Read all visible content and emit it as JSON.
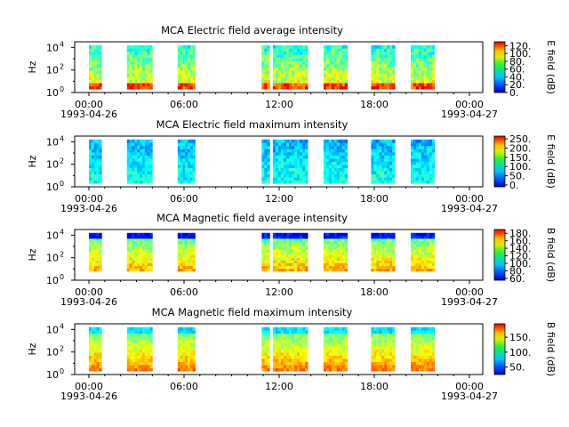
{
  "chart_data": [
    {
      "type": "heatmap",
      "title": "MCA  Electric field average intensity",
      "ylabel": "Hz",
      "y_scale": "log",
      "y_ticks": [
        {
          "base": "10",
          "exp": "0"
        },
        {
          "base": "10",
          "exp": "2"
        },
        {
          "base": "10",
          "exp": "4"
        }
      ],
      "x_ticks": [
        "00:00",
        "06:00",
        "12:00",
        "18:00",
        "00:00"
      ],
      "x_dates": [
        "1993-04-26",
        "1993-04-27"
      ],
      "x_range_hours": [
        0,
        24
      ],
      "y_range_exp": [
        0,
        4.5
      ],
      "colorbar_label": "E field (dB)",
      "colorbar_ticks": [
        "0.",
        "20.",
        "40.",
        "60.",
        "80.",
        "100.",
        "120."
      ],
      "colorbar_range": [
        0,
        130
      ],
      "data_ranges_hours": [
        [
          0.0,
          0.8
        ],
        [
          2.4,
          4.0
        ],
        [
          5.6,
          6.7
        ],
        [
          10.9,
          11.4
        ],
        [
          11.6,
          13.8
        ],
        [
          14.8,
          16.3
        ],
        [
          17.8,
          19.3
        ],
        [
          20.3,
          21.8
        ]
      ],
      "freq_range_exp": [
        0.3,
        4.2
      ]
    },
    {
      "type": "heatmap",
      "title": "MCA  Electric field maximum intensity",
      "ylabel": "Hz",
      "y_scale": "log",
      "y_ticks": [
        {
          "base": "10",
          "exp": "0"
        },
        {
          "base": "10",
          "exp": "2"
        },
        {
          "base": "10",
          "exp": "4"
        }
      ],
      "x_ticks": [
        "00:00",
        "06:00",
        "12:00",
        "18:00",
        "00:00"
      ],
      "x_dates": [
        "1993-04-26",
        "1993-04-27"
      ],
      "x_range_hours": [
        0,
        24
      ],
      "y_range_exp": [
        0,
        4.5
      ],
      "colorbar_label": "E field (dB)",
      "colorbar_ticks": [
        "0.",
        "50.",
        "100.",
        "150.",
        "200.",
        "250."
      ],
      "colorbar_range": [
        -10,
        265
      ],
      "data_ranges_hours": [
        [
          0.0,
          0.8
        ],
        [
          2.4,
          4.0
        ],
        [
          5.6,
          6.7
        ],
        [
          10.9,
          11.4
        ],
        [
          11.6,
          13.8
        ],
        [
          14.8,
          16.3
        ],
        [
          17.8,
          19.3
        ],
        [
          20.3,
          21.8
        ]
      ],
      "freq_range_exp": [
        0.3,
        4.2
      ]
    },
    {
      "type": "heatmap",
      "title": "MCA  Magnetic field average intensity",
      "ylabel": "Hz",
      "y_scale": "log",
      "y_ticks": [
        {
          "base": "10",
          "exp": "0"
        },
        {
          "base": "10",
          "exp": "2"
        },
        {
          "base": "10",
          "exp": "4"
        }
      ],
      "x_ticks": [
        "00:00",
        "06:00",
        "12:00",
        "18:00",
        "00:00"
      ],
      "x_dates": [
        "1993-04-26",
        "1993-04-27"
      ],
      "x_range_hours": [
        0,
        24
      ],
      "y_range_exp": [
        0,
        4.5
      ],
      "colorbar_label": "B field (dB)",
      "colorbar_ticks": [
        "60.",
        "80.",
        "100.",
        "120.",
        "140.",
        "160.",
        "180."
      ],
      "colorbar_range": [
        55,
        190
      ],
      "data_ranges_hours": [
        [
          0.0,
          0.8
        ],
        [
          2.4,
          4.0
        ],
        [
          5.6,
          6.7
        ],
        [
          10.9,
          11.4
        ],
        [
          11.6,
          13.8
        ],
        [
          14.8,
          16.3
        ],
        [
          17.8,
          19.3
        ],
        [
          20.3,
          21.8
        ]
      ],
      "freq_range_exp": [
        0.8,
        4.2
      ]
    },
    {
      "type": "heatmap",
      "title": "MCA  Magnetic field maximum intensity",
      "ylabel": "Hz",
      "y_scale": "log",
      "y_ticks": [
        {
          "base": "10",
          "exp": "0"
        },
        {
          "base": "10",
          "exp": "2"
        },
        {
          "base": "10",
          "exp": "4"
        }
      ],
      "x_ticks": [
        "00:00",
        "06:00",
        "12:00",
        "18:00",
        "00:00"
      ],
      "x_dates": [
        "1993-04-26",
        "1993-04-27"
      ],
      "x_range_hours": [
        0,
        24
      ],
      "y_range_exp": [
        0,
        4.5
      ],
      "colorbar_label": "B field (dB)",
      "colorbar_ticks": [
        "50.",
        "100.",
        "150."
      ],
      "colorbar_range": [
        25,
        195
      ],
      "data_ranges_hours": [
        [
          0.0,
          0.8
        ],
        [
          2.4,
          4.0
        ],
        [
          5.6,
          6.7
        ],
        [
          10.9,
          11.4
        ],
        [
          11.6,
          13.8
        ],
        [
          14.8,
          16.3
        ],
        [
          17.8,
          19.3
        ],
        [
          20.3,
          21.8
        ]
      ],
      "freq_range_exp": [
        0.3,
        4.2
      ]
    }
  ]
}
